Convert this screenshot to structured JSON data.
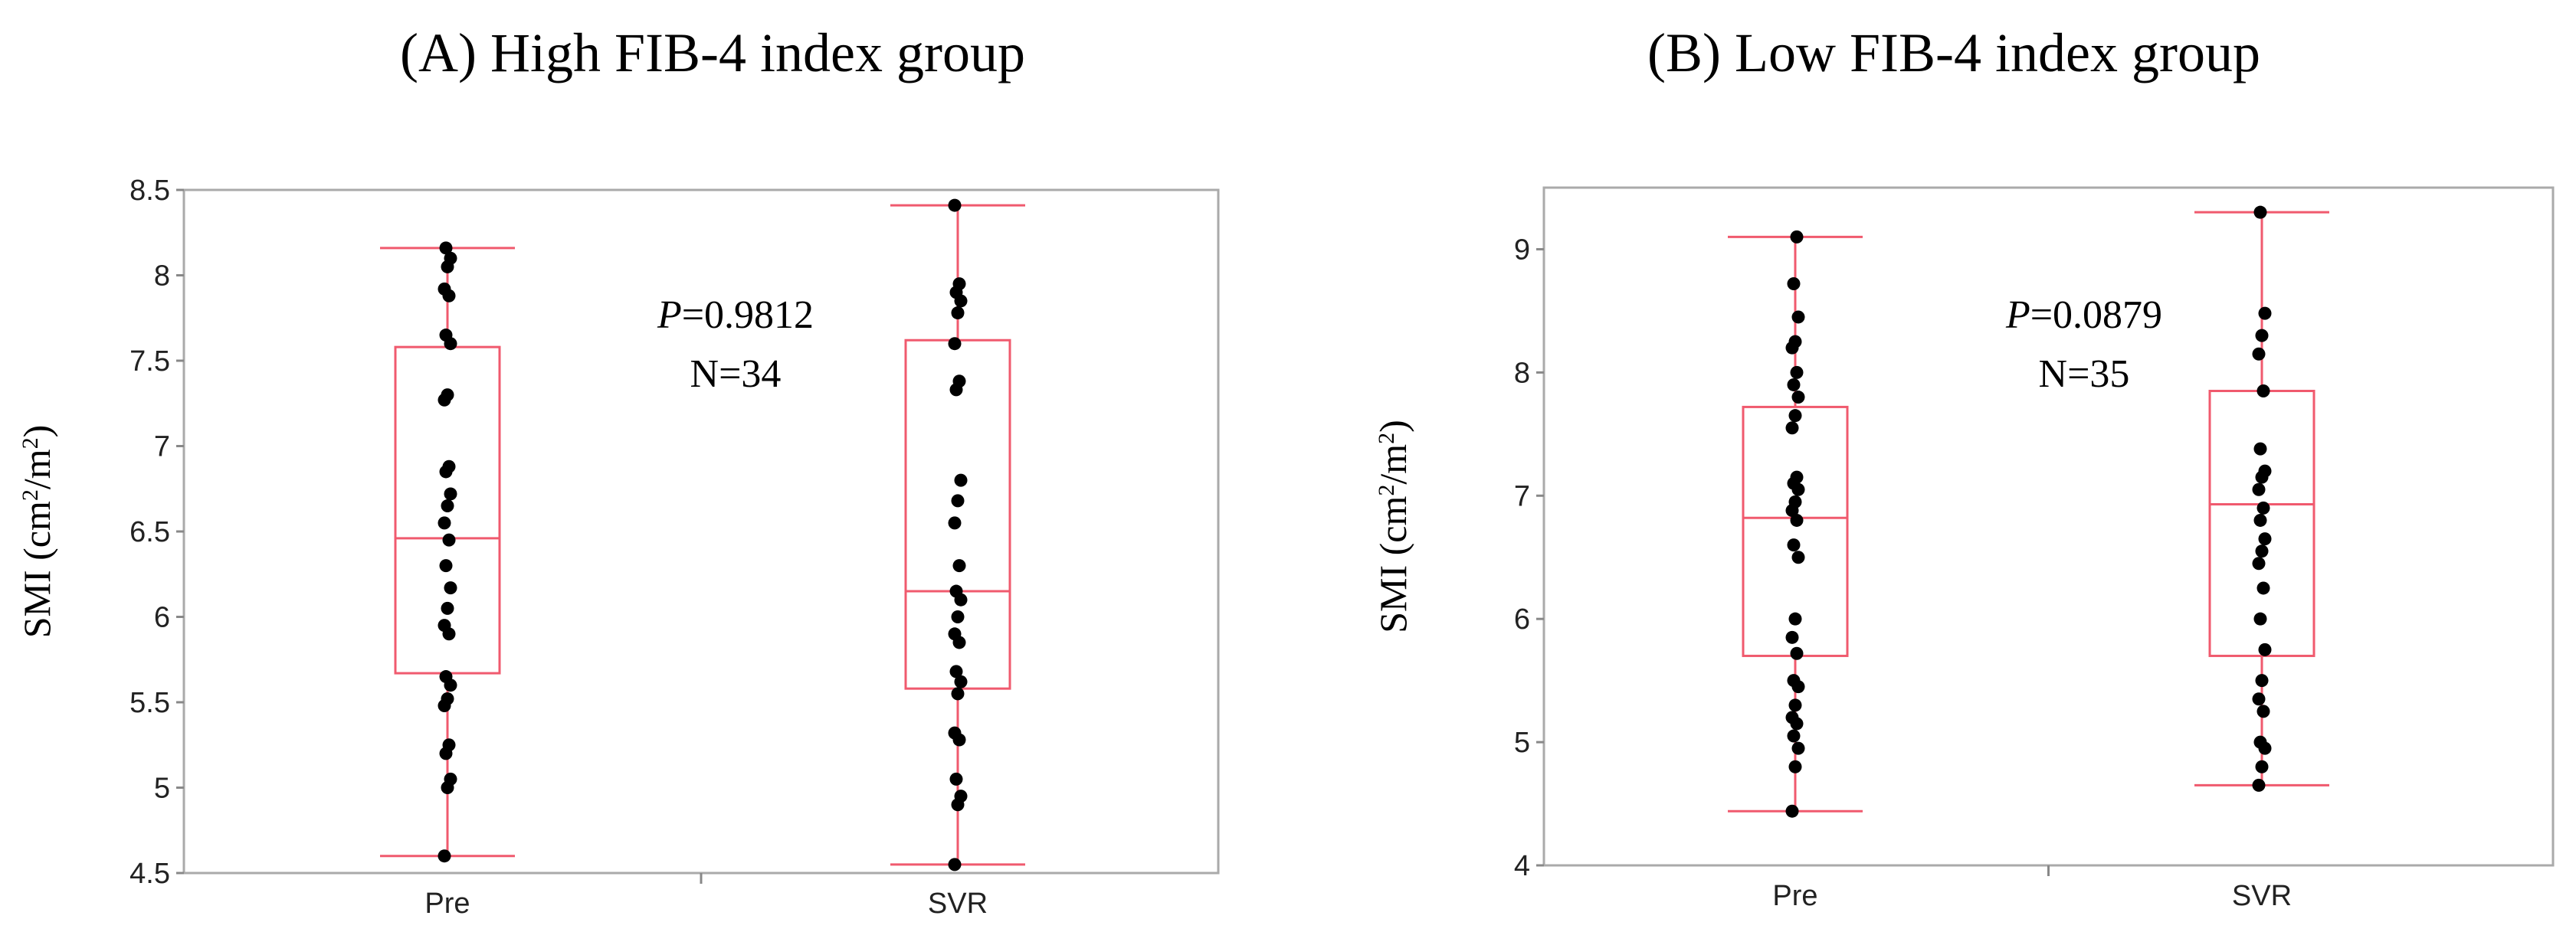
{
  "chart_data": [
    {
      "type": "box",
      "title": "(A) High FIB-4 index group",
      "ylabel_main": "SMI (cm",
      "ylabel_sup1": "2",
      "ylabel_mid": "/m",
      "ylabel_sup2": "2",
      "ylabel_end": ")",
      "xlabel": "",
      "ylim": [
        4.5,
        8.5
      ],
      "yticks": [
        "4.5",
        "5",
        "5.5",
        "6",
        "6.5",
        "7",
        "7.5",
        "8",
        "8.5"
      ],
      "categories": [
        "Pre",
        "SVR"
      ],
      "annotation_p_label": "P",
      "annotation_p_value": "=0.9812",
      "annotation_n": "N=34",
      "colors": {
        "box": "#f05a6e",
        "point": "#000000",
        "frame": "#aaaaaa"
      },
      "boxes": [
        {
          "name": "Pre",
          "min": 4.6,
          "q1": 5.67,
          "median": 6.46,
          "q3": 7.58,
          "max": 8.16
        },
        {
          "name": "SVR",
          "min": 4.55,
          "q1": 5.58,
          "median": 6.15,
          "q3": 7.62,
          "max": 8.41
        }
      ],
      "points": [
        [
          4.6,
          5.0,
          5.05,
          5.2,
          5.25,
          5.48,
          5.52,
          5.6,
          5.65,
          5.9,
          5.95,
          6.05,
          6.17,
          6.3,
          6.45,
          6.55,
          6.65,
          6.72,
          6.85,
          6.88,
          7.27,
          7.3,
          7.6,
          7.65,
          7.88,
          7.92,
          8.05,
          8.1,
          8.16
        ],
        [
          4.55,
          4.9,
          4.95,
          5.05,
          5.28,
          5.32,
          5.55,
          5.62,
          5.68,
          5.85,
          5.9,
          6.0,
          6.1,
          6.15,
          6.3,
          6.55,
          6.68,
          6.8,
          7.33,
          7.38,
          7.6,
          7.78,
          7.85,
          7.9,
          7.95,
          8.41
        ]
      ]
    },
    {
      "type": "box",
      "title": "(B) Low FIB-4 index group",
      "ylabel_main": "SMI (cm",
      "ylabel_sup1": "2",
      "ylabel_mid": "/m",
      "ylabel_sup2": "2",
      "ylabel_end": ")",
      "xlabel": "",
      "ylim": [
        4,
        9.5
      ],
      "yticks": [
        "4",
        "5",
        "6",
        "7",
        "8",
        "9"
      ],
      "categories": [
        "Pre",
        "SVR"
      ],
      "annotation_p_label": "P",
      "annotation_p_value": "=0.0879",
      "annotation_n": "N=35",
      "colors": {
        "box": "#f05a6e",
        "point": "#000000",
        "frame": "#aaaaaa"
      },
      "boxes": [
        {
          "name": "Pre",
          "min": 4.44,
          "q1": 5.7,
          "median": 6.82,
          "q3": 7.72,
          "max": 9.1
        },
        {
          "name": "SVR",
          "min": 4.65,
          "q1": 5.7,
          "median": 6.93,
          "q3": 7.85,
          "max": 9.3
        }
      ],
      "points": [
        [
          4.44,
          4.8,
          4.95,
          5.05,
          5.15,
          5.2,
          5.3,
          5.45,
          5.5,
          5.72,
          5.85,
          6.0,
          6.5,
          6.6,
          6.8,
          6.88,
          6.95,
          7.05,
          7.1,
          7.15,
          7.55,
          7.65,
          7.8,
          7.9,
          8.0,
          8.2,
          8.25,
          8.45,
          8.72,
          9.1
        ],
        [
          4.65,
          4.8,
          4.95,
          5.0,
          5.25,
          5.35,
          5.5,
          5.75,
          6.0,
          6.25,
          6.45,
          6.55,
          6.65,
          6.8,
          6.9,
          7.05,
          7.15,
          7.2,
          7.38,
          7.85,
          8.15,
          8.3,
          8.48,
          9.3
        ]
      ]
    }
  ]
}
